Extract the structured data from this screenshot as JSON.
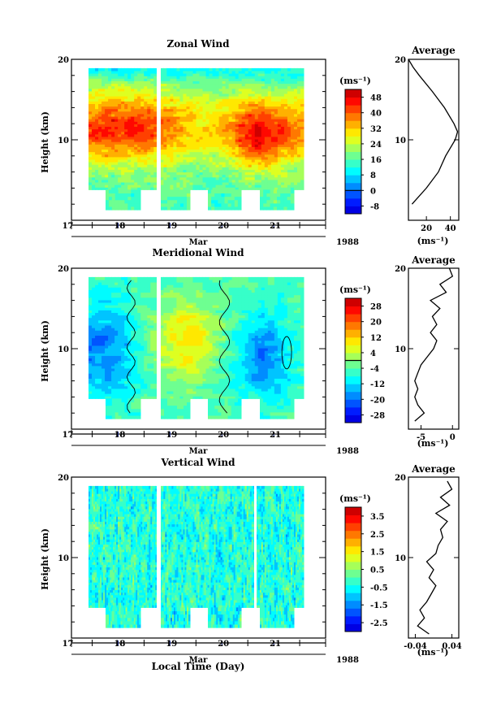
{
  "figure": {
    "xlabel": "Local Time (Day)",
    "month_label": "Mar",
    "year_label": "1988",
    "unit_label": "(ms⁻¹)",
    "avg_title": "Average",
    "y_ticks": [
      "20",
      "10"
    ],
    "day_ticks": [
      "17",
      "18",
      "19",
      "20",
      "21"
    ]
  },
  "chart_data": [
    {
      "type": "heatmap",
      "title": "Zonal Wind",
      "ylabel": "Height (km)",
      "ylim": [
        0,
        20
      ],
      "xlabel": "Local Time (Day)",
      "colorbar": {
        "unit": "(ms⁻¹)",
        "ticks": [
          "48",
          "40",
          "32",
          "24",
          "16",
          "8",
          "0",
          "-8"
        ],
        "range": [
          -12,
          52
        ],
        "zero_contour": 0
      },
      "average": {
        "title": "Average",
        "xticks": [
          "20",
          "40"
        ],
        "xlim": [
          5,
          47
        ],
        "xunit": "(ms⁻¹)",
        "heights": [
          2,
          4,
          6,
          8,
          10,
          11,
          12,
          14,
          16,
          18,
          19,
          20
        ],
        "values": [
          8,
          20,
          30,
          36,
          44,
          46,
          43,
          35,
          25,
          14,
          9,
          5
        ]
      }
    },
    {
      "type": "heatmap",
      "title": "Meridional Wind",
      "ylabel": "Height (km)",
      "ylim": [
        0,
        20
      ],
      "xlabel": "Local Time (Day)",
      "colorbar": {
        "unit": "(ms⁻¹)",
        "ticks": [
          "28",
          "20",
          "12",
          "4",
          "-4",
          "-12",
          "-20",
          "-28"
        ],
        "range": [
          -32,
          32
        ],
        "zero_contour": 0
      },
      "average": {
        "title": "Average",
        "xticks": [
          "-5",
          "0"
        ],
        "xlim": [
          -7,
          1
        ],
        "xunit": "(ms⁻¹)",
        "heights": [
          1,
          2,
          3,
          4,
          5,
          6,
          7,
          8,
          9,
          10,
          11,
          12,
          13,
          14,
          15,
          16,
          17,
          18,
          19,
          20
        ],
        "values": [
          -6,
          -4.5,
          -5.5,
          -6,
          -5.5,
          -6,
          -5.5,
          -5,
          -4,
          -3,
          -2.5,
          -3.5,
          -2.5,
          -3.2,
          -2,
          -3.5,
          -1,
          -2,
          0,
          -0.5
        ]
      }
    },
    {
      "type": "heatmap",
      "title": "Vertical Wind",
      "ylabel": "Height (km)",
      "ylim": [
        0,
        20
      ],
      "xlabel": "Local Time (Day)",
      "colorbar": {
        "unit": "(ms⁻¹)",
        "ticks": [
          "3.5",
          "2.5",
          "1.5",
          "0.5",
          "-0.5",
          "-1.5",
          "-2.5"
        ],
        "range": [
          -3,
          4
        ]
      },
      "average": {
        "title": "Average",
        "xticks": [
          "-0.04",
          "0.04"
        ],
        "xlim": [
          -0.055,
          0.055
        ],
        "xunit": "(ms⁻¹)",
        "heights": [
          0.5,
          1.5,
          2.5,
          3.5,
          4.5,
          5.5,
          6.5,
          7.5,
          8.5,
          9.5,
          10.5,
          11.5,
          12.5,
          13.5,
          14.5,
          15.5,
          16.5,
          17.5,
          18.5,
          19.5
        ],
        "values": [
          -0.01,
          -0.035,
          -0.02,
          -0.03,
          -0.015,
          -0.005,
          0.005,
          -0.01,
          0.0,
          -0.015,
          0.005,
          0.01,
          0.02,
          0.015,
          0.03,
          0.005,
          0.035,
          0.015,
          0.04,
          0.03
        ]
      }
    }
  ]
}
